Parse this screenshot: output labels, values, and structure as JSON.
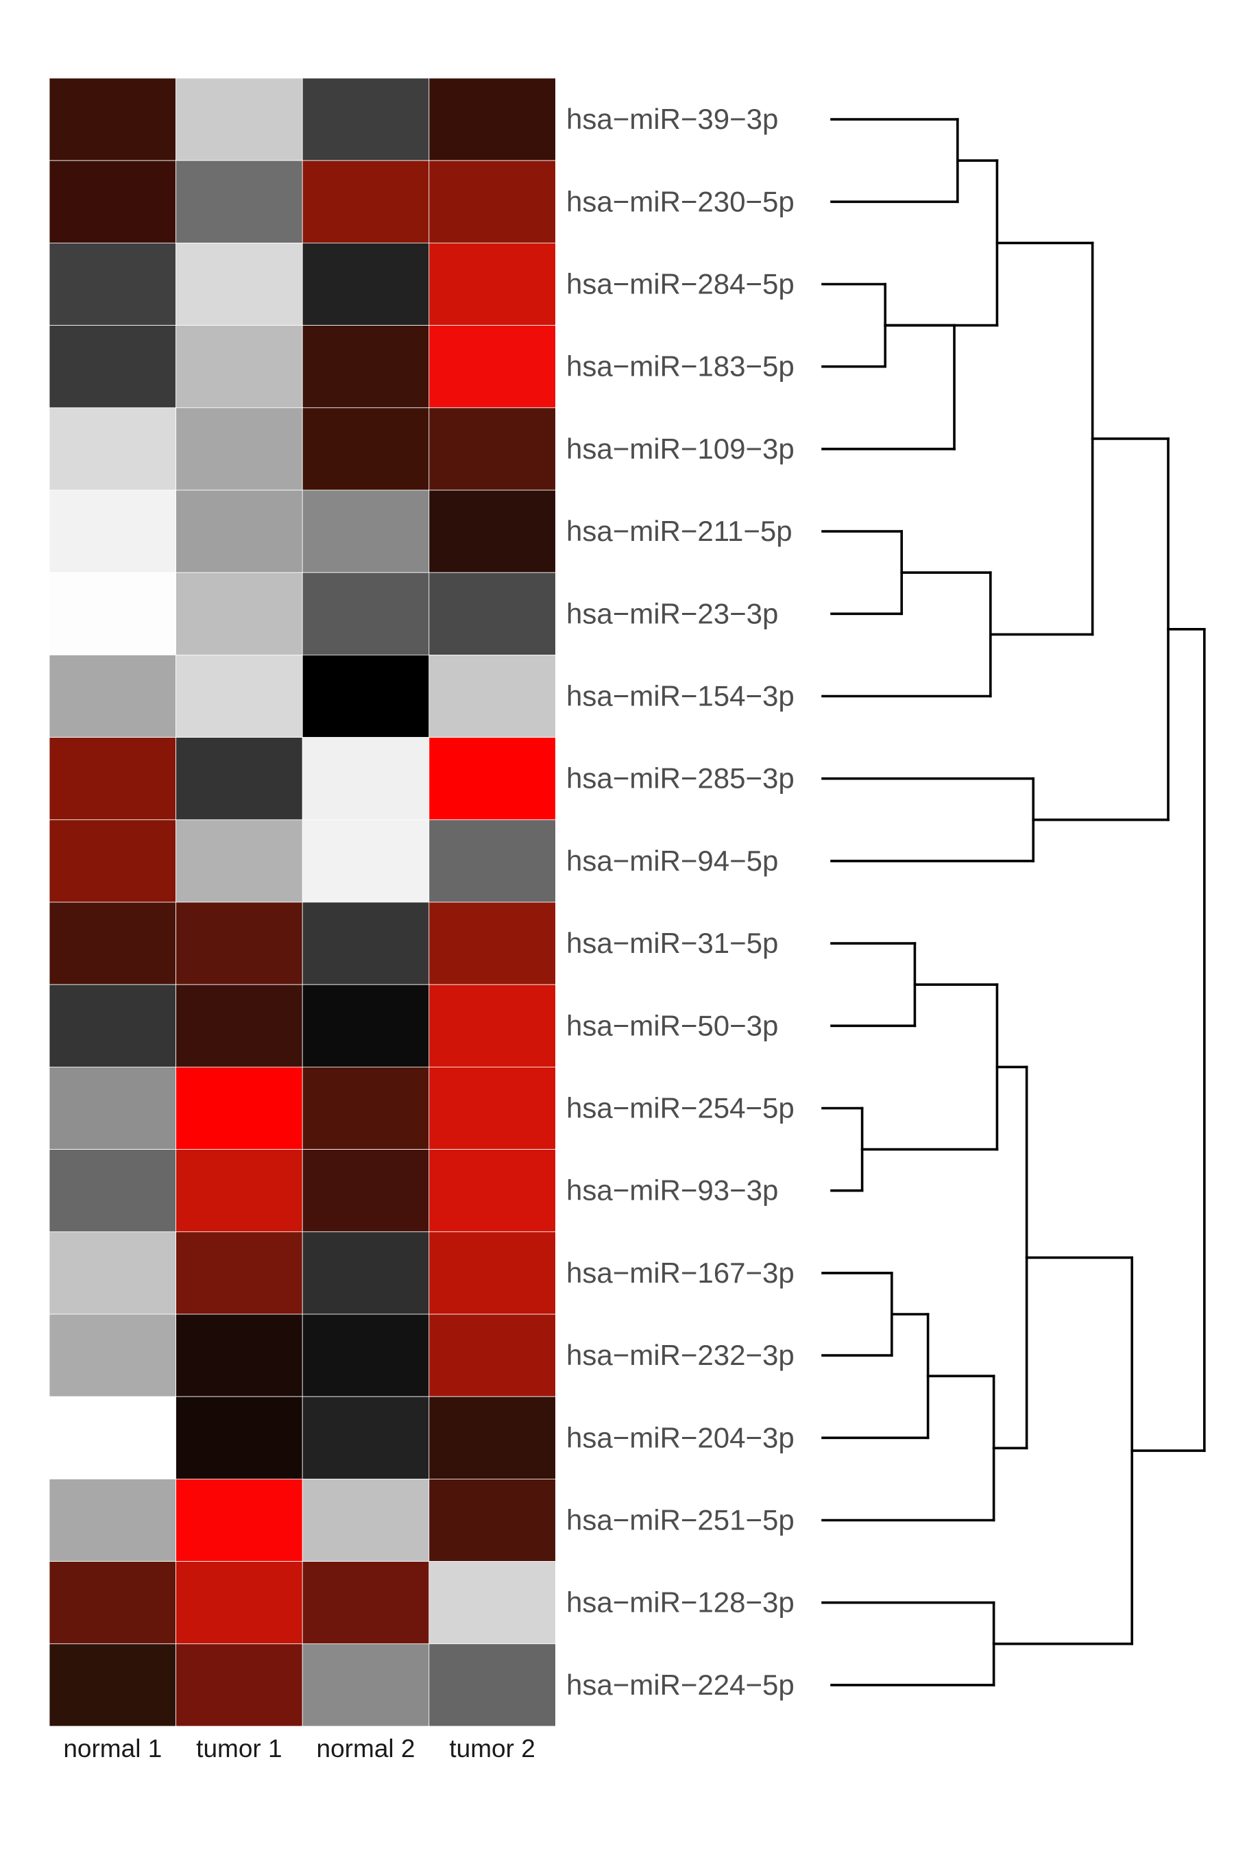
{
  "chart_data": {
    "type": "heatmap",
    "columns": [
      "normal 1",
      "tumor 1",
      "normal 2",
      "tumor 2"
    ],
    "rows": [
      "hsa−miR−39−3p",
      "hsa−miR−230−5p",
      "hsa−miR−284−5p",
      "hsa−miR−183−5p",
      "hsa−miR−109−3p",
      "hsa−miR−211−5p",
      "hsa−miR−23−3p",
      "hsa−miR−154−3p",
      "hsa−miR−285−3p",
      "hsa−miR−94−5p",
      "hsa−miR−31−5p",
      "hsa−miR−50−3p",
      "hsa−miR−254−5p",
      "hsa−miR−93−3p",
      "hsa−miR−167−3p",
      "hsa−miR−232−3p",
      "hsa−miR−204−3p",
      "hsa−miR−251−5p",
      "hsa−miR−128−3p",
      "hsa−miR−224−5p"
    ],
    "cell_colors": [
      [
        "#3b1108",
        "#cbcbcb",
        "#3e3e3e",
        "#381008"
      ],
      [
        "#3b0f08",
        "#6e6e6e",
        "#8a1708",
        "#8c1708"
      ],
      [
        "#404040",
        "#d9d9d9",
        "#222222",
        "#d01408"
      ],
      [
        "#3a3a3a",
        "#bcbcbc",
        "#3d1208",
        "#f00c08"
      ],
      [
        "#dadada",
        "#a7a7a7",
        "#3f1208",
        "#53150a"
      ],
      [
        "#f2f2f2",
        "#a0a0a0",
        "#888888",
        "#2b0f08"
      ],
      [
        "#fdfdfd",
        "#bebebe",
        "#5a5a5a",
        "#4a4a4a"
      ],
      [
        "#a8a8a8",
        "#d8d8d8",
        "#000000",
        "#c8c8c8"
      ],
      [
        "#871608",
        "#343434",
        "#f0f0f0",
        "#ff0000"
      ],
      [
        "#851608",
        "#b2b2b2",
        "#f2f2f2",
        "#686868"
      ],
      [
        "#4a1309",
        "#5b150b",
        "#363636",
        "#911708"
      ],
      [
        "#353535",
        "#3b110a",
        "#0c0c0c",
        "#d01408"
      ],
      [
        "#8f8f8f",
        "#ff0000",
        "#501409",
        "#d41408"
      ],
      [
        "#686868",
        "#c91408",
        "#44120a",
        "#d41408"
      ],
      [
        "#c3c3c3",
        "#77160a",
        "#2f2f2f",
        "#bb1508"
      ],
      [
        "#ababab",
        "#1b0a06",
        "#121212",
        "#9f1609"
      ],
      [
        "#ffffff",
        "#150805",
        "#222222",
        "#331008"
      ],
      [
        "#a8a8a8",
        "#fc0404",
        "#c0c0c0",
        "#4d1409"
      ],
      [
        "#65160b",
        "#c61408",
        "#6e160b",
        "#d5d5d5"
      ],
      [
        "#2d1208",
        "#75150b",
        "#8a8a8a",
        "#666666"
      ]
    ],
    "color_scale": {
      "low": "#ffffff",
      "mid": "#000000",
      "high": "#ff0000"
    },
    "legend": "none",
    "grid": true,
    "row_dendrogram": true,
    "dendrogram_merges": [
      {
        "a": 3,
        "b": 4,
        "h": 0.19
      },
      {
        "a": 1,
        "b": 2,
        "h": 0.41
      },
      {
        "a": 6,
        "b": 7,
        "h": 0.24
      },
      {
        "a": 11,
        "b": 12,
        "h": 0.28
      },
      {
        "a": 13,
        "b": 14,
        "h": 0.12
      },
      {
        "a": 15,
        "b": 16,
        "h": 0.21
      },
      {
        "a": 19,
        "b": 20,
        "h": 0.52
      },
      {
        "a": 9,
        "b": 10,
        "h": 0.64
      },
      {
        "a": -1,
        "b": 5,
        "h": 0.4
      },
      {
        "a": -2,
        "b": -1,
        "h": 0.53
      },
      {
        "a": -3,
        "b": 8,
        "h": 0.51
      },
      {
        "a": -4,
        "b": -5,
        "h": 0.53
      },
      {
        "a": -6,
        "b": 17,
        "h": 0.32
      },
      {
        "a": -13,
        "b": 18,
        "h": 0.52
      },
      {
        "a": -12,
        "b": -14,
        "h": 0.62
      },
      {
        "a": -10,
        "b": -11,
        "h": 0.82
      },
      {
        "a": -15,
        "b": -7,
        "h": 0.94
      },
      {
        "a": -16,
        "b": -8,
        "h": 1.05
      },
      {
        "a": -18,
        "b": -17,
        "h": 1.16
      }
    ]
  }
}
